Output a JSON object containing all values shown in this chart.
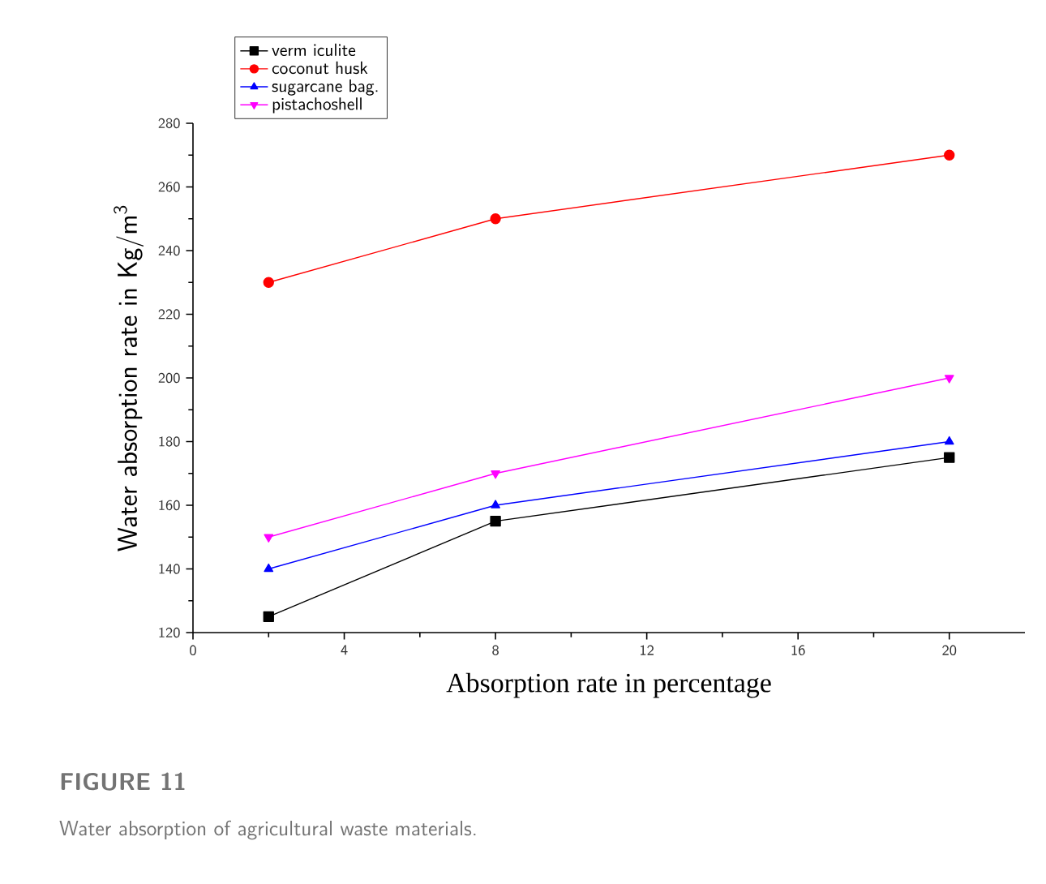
{
  "chart_data": {
    "type": "line",
    "xlabel": "Absorption rate in percentage",
    "ylabel": "Water absorption rate in Kg/m$^{3}$",
    "x": [
      2,
      8,
      20
    ],
    "series": [
      {
        "name": "verm iculite",
        "color": "#000000",
        "marker": "square",
        "values": [
          125,
          155,
          175
        ]
      },
      {
        "name": "coconut husk",
        "color": "#ff0000",
        "marker": "circle",
        "values": [
          230,
          250,
          270
        ]
      },
      {
        "name": "sugarcane bag.",
        "color": "#0000ff",
        "marker": "triangle",
        "values": [
          140,
          160,
          180
        ]
      },
      {
        "name": "pistachoshell",
        "color": "#ff00ff",
        "marker": "triangle-down",
        "values": [
          150,
          170,
          200
        ]
      }
    ],
    "xlim": [
      0,
      22
    ],
    "ylim": [
      120,
      280
    ],
    "xticks": [
      0,
      4,
      8,
      12,
      16,
      20
    ],
    "yticks": [
      120,
      140,
      160,
      180,
      200,
      220,
      240,
      260,
      280
    ],
    "legend": "top left",
    "annotations": [
      "FIGURE 11",
      "Water absorption of agricultural waste materials."
    ]
  }
}
